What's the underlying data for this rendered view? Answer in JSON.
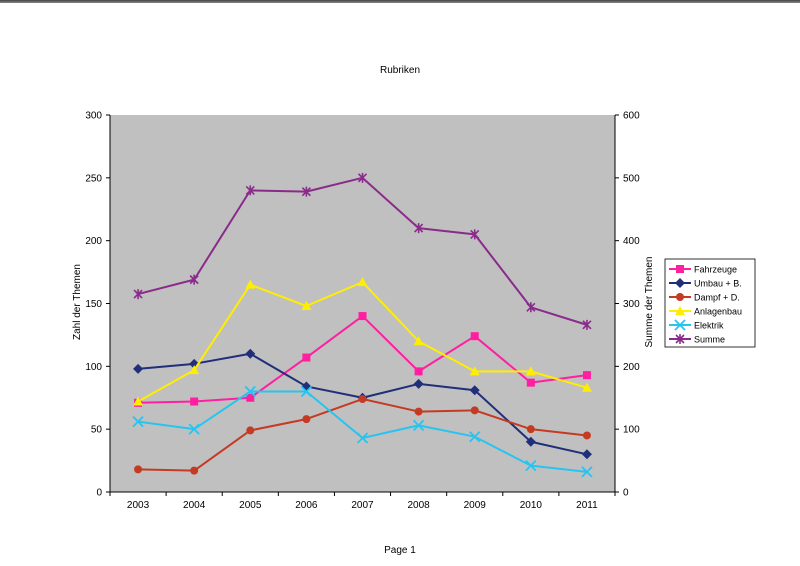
{
  "page": {
    "footer": "Page 1"
  },
  "chart_data": {
    "type": "line",
    "title": "Rubriken",
    "xlabel": "",
    "ylabel": "Zahl der Themen",
    "y2label": "Summe der Themen",
    "categories": [
      "2003",
      "2004",
      "2005",
      "2006",
      "2007",
      "2008",
      "2009",
      "2010",
      "2011"
    ],
    "ylim": [
      0,
      300
    ],
    "y2lim": [
      0,
      600
    ],
    "yticks": [
      0,
      50,
      100,
      150,
      200,
      250,
      300
    ],
    "y2ticks": [
      0,
      100,
      200,
      300,
      400,
      500,
      600
    ],
    "plot_background": "#c0c0c0",
    "legend_position": "right",
    "series": [
      {
        "name": "Fahrzeuge",
        "axis": "left",
        "color": "#ff1fa0",
        "marker": "square",
        "values": [
          71,
          72,
          75,
          107,
          140,
          96,
          124,
          87,
          93
        ]
      },
      {
        "name": "Umbau + B.",
        "axis": "left",
        "color": "#1f2f7a",
        "marker": "diamond",
        "values": [
          98,
          102,
          110,
          84,
          75,
          86,
          81,
          40,
          30
        ]
      },
      {
        "name": "Dampf + D.",
        "axis": "left",
        "color": "#c43a22",
        "marker": "circle",
        "values": [
          18,
          17,
          49,
          58,
          74,
          64,
          65,
          50,
          45
        ]
      },
      {
        "name": "Anlagenbau",
        "axis": "left",
        "color": "#ffee00",
        "marker": "triangle",
        "values": [
          72,
          97,
          165,
          148,
          167,
          120,
          96,
          96,
          83
        ]
      },
      {
        "name": "Elektrik",
        "axis": "left",
        "color": "#27c4f0",
        "marker": "x",
        "values": [
          56,
          50,
          80,
          80,
          43,
          53,
          44,
          21,
          16
        ]
      },
      {
        "name": "Summe",
        "axis": "right",
        "color": "#8a2a8a",
        "marker": "star",
        "values": [
          315,
          338,
          480,
          478,
          500,
          420,
          410,
          294,
          266
        ]
      }
    ]
  }
}
